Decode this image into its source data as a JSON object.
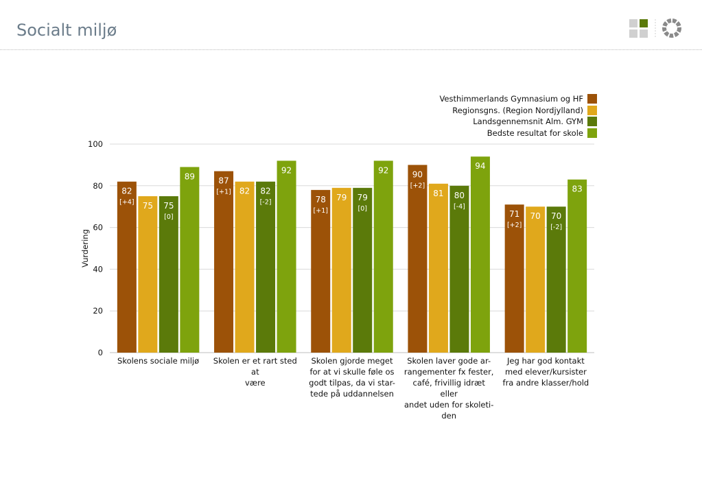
{
  "page": {
    "title": "Socialt miljø"
  },
  "logo": {
    "icon": "grid-logo-icon",
    "ring_icon": "ring-logo-icon"
  },
  "colors": {
    "series": [
      "#9c5208",
      "#e0a81c",
      "#5b7a0a",
      "#7ea30d"
    ],
    "grid": "#d9d9d9",
    "title": "#6b7c8a"
  },
  "chart_data": {
    "type": "bar",
    "ylabel": "Vurdering",
    "ylim": [
      0,
      100
    ],
    "yticks": [
      0,
      20,
      40,
      60,
      80,
      100
    ],
    "grid": true,
    "legend_position": "top-right",
    "categories": [
      "Skolens sociale miljø",
      "Skolen er et rart sted at være",
      "Skolen gjorde meget for at vi skulle føle os godt tilpas, da vi startede på uddannelsen",
      "Skolen laver gode arrangementer fx fester, café, frivillig idræt eller andet uden for skoletiden",
      "Jeg har god kontakt med elever/kursister fra andre klasser/hold"
    ],
    "category_lines": [
      [
        "Skolens sociale miljø"
      ],
      [
        "Skolen er et rart sted at",
        "være"
      ],
      [
        "Skolen gjorde meget",
        "for at vi skulle føle os",
        "godt tilpas, da vi star-",
        "tede på uddannelsen"
      ],
      [
        "Skolen laver gode ar-",
        "rangementer fx fester,",
        "café, frivillig idræt eller",
        "andet uden for skoleti-",
        "den"
      ],
      [
        "Jeg har god kontakt",
        "med elever/kursister",
        "fra andre klasser/hold"
      ]
    ],
    "series": [
      {
        "name": "Vesthimmerlands Gymnasium og HF",
        "values": [
          82,
          87,
          78,
          90,
          71
        ],
        "changes": [
          "[+4]",
          "[+1]",
          "[+1]",
          "[+2]",
          "[+2]"
        ]
      },
      {
        "name": "Regionsgns. (Region Nordjylland)",
        "values": [
          75,
          82,
          79,
          81,
          70
        ],
        "changes": [
          "",
          "",
          "",
          "",
          ""
        ]
      },
      {
        "name": "Landsgennemsnit Alm. GYM",
        "values": [
          75,
          82,
          79,
          80,
          70
        ],
        "changes": [
          "[0]",
          "[-2]",
          "[0]",
          "[-4]",
          "[-2]"
        ]
      },
      {
        "name": "Bedste resultat for skole",
        "values": [
          89,
          92,
          92,
          94,
          83
        ],
        "changes": [
          "",
          "",
          "",
          "",
          ""
        ]
      }
    ]
  }
}
